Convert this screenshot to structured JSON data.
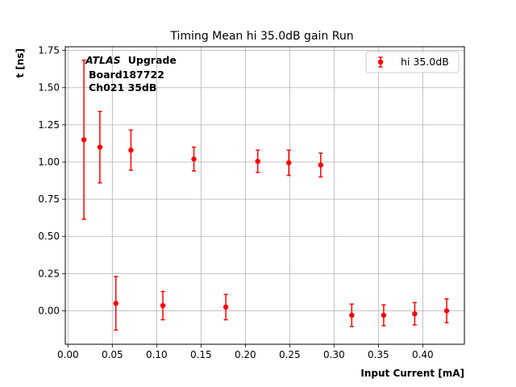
{
  "chart_data": {
    "type": "scatter",
    "title": "Timing Mean hi 35.0dB gain Run",
    "xlabel": "Input Current [mA]",
    "ylabel": "t [ns]",
    "xlim": [
      -0.003,
      0.447
    ],
    "ylim": [
      -0.225,
      1.775
    ],
    "xticks": [
      0.0,
      0.05,
      0.1,
      0.15,
      0.2,
      0.25,
      0.3,
      0.35,
      0.4
    ],
    "xtick_labels": [
      "0.00",
      "0.05",
      "0.10",
      "0.15",
      "0.20",
      "0.25",
      "0.30",
      "0.35",
      "0.40"
    ],
    "yticks": [
      0.0,
      0.25,
      0.5,
      0.75,
      1.0,
      1.25,
      1.5,
      1.75
    ],
    "ytick_labels": [
      "0.00",
      "0.25",
      "0.50",
      "0.75",
      "1.00",
      "1.25",
      "1.50",
      "1.75"
    ],
    "grid": true,
    "legend_position": "top-right",
    "annotation": {
      "atlas": "ATLAS",
      "upgrade": "Upgrade",
      "board": "Board187722",
      "channel": "Ch021 35dB"
    },
    "series": [
      {
        "name": "hi 35.0dB",
        "color": "#ff0000",
        "x": [
          0.018,
          0.036,
          0.054,
          0.071,
          0.107,
          0.142,
          0.178,
          0.214,
          0.249,
          0.285,
          0.32,
          0.356,
          0.391,
          0.427
        ],
        "y": [
          1.15,
          1.1,
          0.05,
          1.08,
          0.035,
          1.02,
          0.025,
          1.005,
          0.995,
          0.98,
          -0.03,
          -0.03,
          -0.02,
          0.0
        ],
        "err": [
          0.535,
          0.24,
          0.18,
          0.135,
          0.095,
          0.08,
          0.085,
          0.075,
          0.085,
          0.08,
          0.075,
          0.07,
          0.075,
          0.08
        ]
      }
    ]
  }
}
